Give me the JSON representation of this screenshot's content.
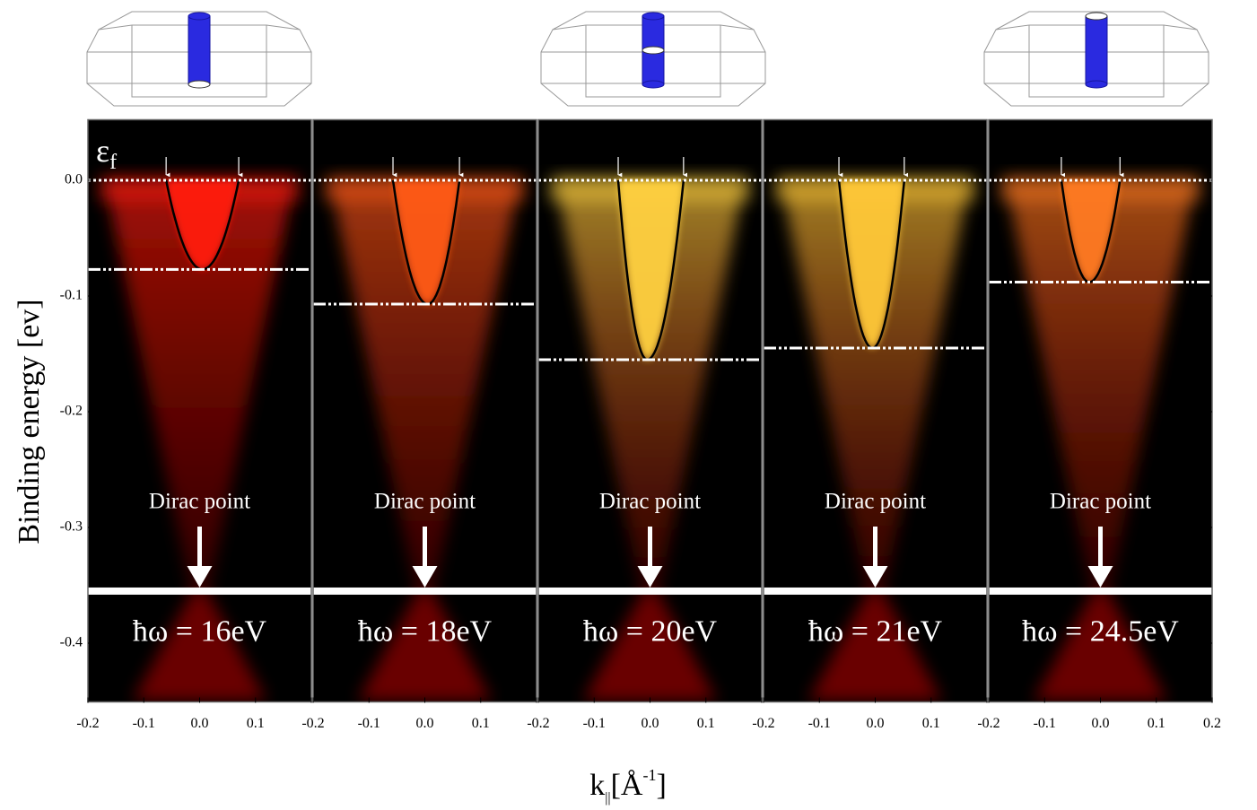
{
  "chart_data": {
    "type": "arpes",
    "y_label": "Binding energy [ev]",
    "x_label_parts": [
      "k",
      "||",
      "[Å",
      "-1",
      "]"
    ],
    "fermi_label_parts": [
      "ε",
      "f"
    ],
    "ylim": [
      -0.45,
      0.05
    ],
    "yticks": [
      {
        "value": 0,
        "label": "0.0"
      },
      -0.1,
      -0.2,
      -0.3,
      -0.4
    ],
    "xlim": [
      -0.2,
      0.2
    ],
    "xticks": [
      -0.2,
      -0.1,
      {
        "value": 0,
        "label": "0.0"
      },
      0.1,
      0.2
    ],
    "fermi_level": 0,
    "dirac_energy": -0.355,
    "panels": [
      {
        "photon_label": "ħω = 16eV",
        "annotation": "Dirac point",
        "band_bottom": -0.077,
        "vertex_k": 0.005,
        "kf": [
          -0.06,
          0.07
        ],
        "color": "#ff1a0a"
      },
      {
        "photon_label": "ħω = 18eV",
        "annotation": "Dirac point",
        "band_bottom": -0.107,
        "vertex_k": 0.005,
        "kf": [
          -0.057,
          0.062
        ],
        "color": "#ff5a18"
      },
      {
        "photon_label": "ħω = 20eV",
        "annotation": "Dirac point",
        "band_bottom": -0.155,
        "vertex_k": -0.005,
        "kf": [
          -0.057,
          0.06
        ],
        "color": "#ffd040"
      },
      {
        "photon_label": "ħω = 21eV",
        "annotation": "Dirac point",
        "band_bottom": -0.145,
        "vertex_k": -0.005,
        "kf": [
          -0.065,
          0.052
        ],
        "color": "#ffc838"
      },
      {
        "photon_label": "ħω = 24.5eV",
        "annotation": "Dirac point",
        "band_bottom": -0.088,
        "vertex_k": -0.02,
        "kf": [
          -0.07,
          0.035
        ],
        "color": "#ff7a20"
      }
    ]
  }
}
